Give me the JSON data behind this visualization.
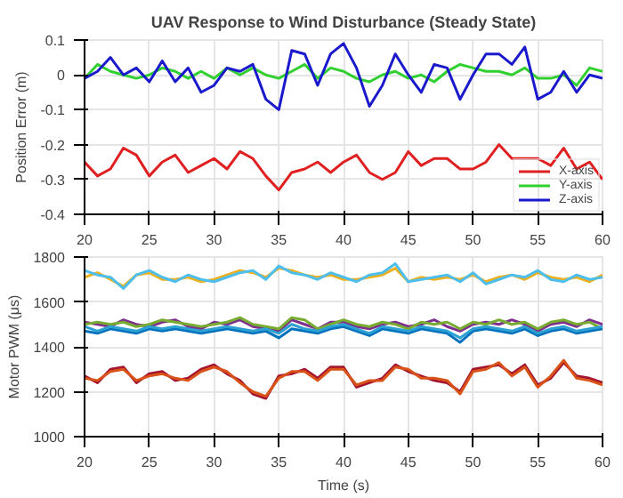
{
  "chart_data": [
    {
      "type": "line",
      "title": "UAV Response to Wind Disturbance (Steady State)",
      "ylabel": "Position Error (m)",
      "x": [
        20,
        21,
        22,
        23,
        24,
        25,
        26,
        27,
        28,
        29,
        30,
        31,
        32,
        33,
        34,
        35,
        36,
        37,
        38,
        39,
        40,
        41,
        42,
        43,
        44,
        45,
        46,
        47,
        48,
        49,
        50,
        51,
        52,
        53,
        54,
        55,
        56,
        57,
        58,
        59,
        60
      ],
      "xlim": [
        20,
        60
      ],
      "xticks": [
        20,
        25,
        30,
        35,
        40,
        45,
        50,
        55,
        60
      ],
      "ylim": [
        -0.4,
        0.1
      ],
      "yticks": [
        -0.4,
        -0.3,
        -0.2,
        -0.1,
        0,
        0.1
      ],
      "grid": true,
      "legend": "bottom right",
      "line_style": "solid",
      "series": [
        {
          "name": "X-axis",
          "color": "#e02020",
          "values": [
            -0.25,
            -0.29,
            -0.27,
            -0.21,
            -0.23,
            -0.29,
            -0.25,
            -0.23,
            -0.28,
            -0.26,
            -0.24,
            -0.27,
            -0.22,
            -0.24,
            -0.29,
            -0.33,
            -0.28,
            -0.27,
            -0.25,
            -0.28,
            -0.25,
            -0.23,
            -0.28,
            -0.3,
            -0.28,
            -0.22,
            -0.26,
            -0.24,
            -0.24,
            -0.27,
            -0.27,
            -0.25,
            -0.2,
            -0.24,
            -0.24,
            -0.24,
            -0.26,
            -0.21,
            -0.27,
            -0.25,
            -0.3
          ]
        },
        {
          "name": "Y-axis",
          "color": "#30d030",
          "values": [
            -0.01,
            0.03,
            0.01,
            0.0,
            -0.01,
            0.0,
            0.02,
            0.01,
            -0.01,
            0.01,
            -0.01,
            0.02,
            0.0,
            0.02,
            0.0,
            -0.01,
            0.01,
            0.03,
            -0.01,
            0.02,
            0.01,
            -0.01,
            -0.02,
            0.0,
            0.01,
            -0.01,
            0.0,
            -0.02,
            0.01,
            0.03,
            0.02,
            0.01,
            0.01,
            0.0,
            0.02,
            -0.01,
            -0.01,
            0.0,
            -0.03,
            0.02,
            0.01
          ]
        },
        {
          "name": "Z-axis",
          "color": "#1a1acc",
          "values": [
            -0.01,
            0.01,
            0.05,
            0.0,
            0.02,
            -0.02,
            0.04,
            -0.02,
            0.02,
            -0.05,
            -0.03,
            0.02,
            0.01,
            0.03,
            -0.07,
            -0.1,
            0.07,
            0.06,
            -0.03,
            0.06,
            0.09,
            0.02,
            -0.09,
            -0.03,
            0.06,
            0.0,
            -0.05,
            0.03,
            0.02,
            -0.07,
            0.0,
            0.06,
            0.06,
            0.03,
            0.08,
            -0.07,
            -0.05,
            0.01,
            -0.05,
            0.0,
            -0.01
          ]
        }
      ]
    },
    {
      "type": "line",
      "xlabel": "Time (s)",
      "ylabel": "Motor PWM (μs)",
      "x": [
        20,
        21,
        22,
        23,
        24,
        25,
        26,
        27,
        28,
        29,
        30,
        31,
        32,
        33,
        34,
        35,
        36,
        37,
        38,
        39,
        40,
        41,
        42,
        43,
        44,
        45,
        46,
        47,
        48,
        49,
        50,
        51,
        52,
        53,
        54,
        55,
        56,
        57,
        58,
        59,
        60
      ],
      "xlim": [
        20,
        60
      ],
      "xticks": [
        20,
        25,
        30,
        35,
        40,
        45,
        50,
        55,
        60
      ],
      "ylim": [
        1000,
        1800
      ],
      "yticks": [
        1000,
        1200,
        1400,
        1600,
        1800
      ],
      "grid": true,
      "line_style": "solid",
      "series": [
        {
          "color": "#edb120",
          "values": [
            1710,
            1730,
            1700,
            1670,
            1720,
            1730,
            1700,
            1700,
            1710,
            1690,
            1700,
            1720,
            1740,
            1730,
            1710,
            1750,
            1740,
            1720,
            1710,
            1720,
            1700,
            1700,
            1710,
            1720,
            1750,
            1690,
            1710,
            1700,
            1710,
            1700,
            1720,
            1690,
            1710,
            1720,
            1700,
            1730,
            1710,
            1700,
            1710,
            1690,
            1720
          ]
        },
        {
          "color": "#4dbeee",
          "values": [
            1740,
            1720,
            1710,
            1660,
            1720,
            1740,
            1710,
            1690,
            1720,
            1700,
            1690,
            1710,
            1730,
            1740,
            1700,
            1760,
            1730,
            1720,
            1700,
            1730,
            1710,
            1690,
            1720,
            1730,
            1770,
            1690,
            1700,
            1710,
            1720,
            1690,
            1730,
            1680,
            1700,
            1720,
            1710,
            1740,
            1700,
            1690,
            1720,
            1700,
            1710
          ]
        },
        {
          "color": "#7e2f8e",
          "values": [
            1510,
            1500,
            1490,
            1520,
            1500,
            1490,
            1510,
            1520,
            1490,
            1480,
            1510,
            1500,
            1520,
            1490,
            1480,
            1470,
            1520,
            1500,
            1480,
            1510,
            1510,
            1490,
            1480,
            1500,
            1510,
            1490,
            1500,
            1520,
            1490,
            1470,
            1500,
            1510,
            1500,
            1520,
            1500,
            1470,
            1500,
            1510,
            1490,
            1520,
            1500
          ]
        },
        {
          "color": "#77ac30",
          "values": [
            1500,
            1510,
            1500,
            1510,
            1490,
            1500,
            1520,
            1510,
            1500,
            1490,
            1500,
            1510,
            1530,
            1500,
            1490,
            1480,
            1530,
            1520,
            1480,
            1500,
            1520,
            1500,
            1490,
            1510,
            1500,
            1480,
            1510,
            1500,
            1510,
            1480,
            1510,
            1500,
            1520,
            1500,
            1510,
            1480,
            1510,
            1520,
            1500,
            1510,
            1480
          ]
        },
        {
          "color": "#0072bd",
          "values": [
            1470,
            1460,
            1480,
            1470,
            1460,
            1480,
            1470,
            1480,
            1470,
            1460,
            1470,
            1480,
            1470,
            1460,
            1470,
            1440,
            1480,
            1470,
            1460,
            1480,
            1490,
            1470,
            1450,
            1480,
            1470,
            1460,
            1480,
            1470,
            1460,
            1420,
            1470,
            1480,
            1470,
            1460,
            1480,
            1450,
            1470,
            1480,
            1460,
            1470,
            1480
          ]
        },
        {
          "color": "#2ca0d0",
          "values": [
            1490,
            1470,
            1490,
            1480,
            1470,
            1490,
            1480,
            1490,
            1480,
            1470,
            1480,
            1490,
            1480,
            1470,
            1480,
            1460,
            1500,
            1480,
            1470,
            1490,
            1500,
            1480,
            1460,
            1490,
            1480,
            1470,
            1490,
            1480,
            1470,
            1440,
            1480,
            1490,
            1480,
            1470,
            1490,
            1460,
            1480,
            1490,
            1470,
            1480,
            1490
          ]
        },
        {
          "color": "#a2142f",
          "values": [
            1270,
            1240,
            1300,
            1310,
            1240,
            1280,
            1290,
            1250,
            1260,
            1300,
            1320,
            1280,
            1250,
            1190,
            1170,
            1270,
            1280,
            1300,
            1260,
            1310,
            1310,
            1220,
            1240,
            1260,
            1320,
            1290,
            1270,
            1250,
            1240,
            1200,
            1300,
            1310,
            1320,
            1280,
            1320,
            1230,
            1260,
            1330,
            1270,
            1260,
            1240
          ]
        },
        {
          "color": "#d95319",
          "values": [
            1260,
            1250,
            1290,
            1300,
            1250,
            1270,
            1280,
            1260,
            1250,
            1290,
            1310,
            1290,
            1240,
            1200,
            1180,
            1260,
            1290,
            1290,
            1250,
            1300,
            1300,
            1230,
            1250,
            1250,
            1310,
            1300,
            1260,
            1260,
            1250,
            1190,
            1290,
            1300,
            1330,
            1270,
            1310,
            1220,
            1270,
            1340,
            1260,
            1250,
            1230
          ]
        }
      ]
    }
  ]
}
